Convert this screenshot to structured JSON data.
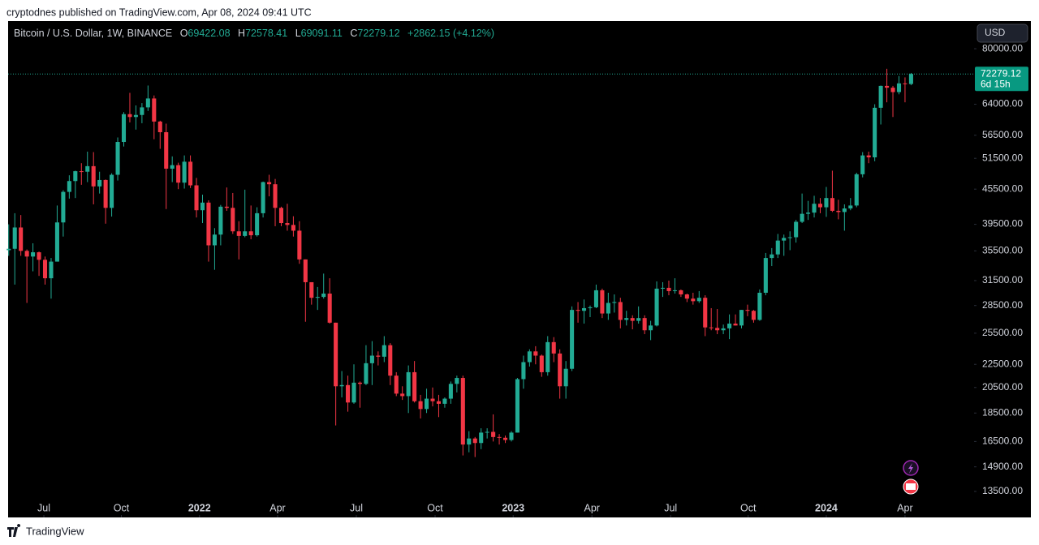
{
  "published": "cryptodnes published on TradingView.com, Apr 08, 2024 09:41 UTC",
  "brand": "TradingView",
  "chart_data": {
    "type": "candlestick",
    "title": "Bitcoin / U.S. Dollar, 1W, BINANCE",
    "ohlc_labels": [
      "O",
      "H",
      "L",
      "C"
    ],
    "change": "+2862.15 (+4.12%)",
    "countdown": "6d 15h",
    "currency": "USD",
    "up_color": "#22ab94",
    "down_color": "#f23645",
    "log_scale": true,
    "grid": false,
    "open": [
      35600,
      35800,
      39000,
      35500,
      34700,
      35300,
      34250,
      31800,
      34000,
      39800,
      45000,
      47000,
      48900,
      48800,
      49900,
      46000,
      47200,
      42200,
      48200,
      55000,
      61500,
      60800,
      61300,
      63200,
      65500,
      59700,
      57200,
      49400,
      50100,
      46700,
      50800,
      46200,
      41800,
      43100,
      36300,
      37900,
      42400,
      42200,
      38400,
      37700,
      38400,
      37800,
      41300,
      46800,
      46400,
      42200,
      39700,
      39400,
      38500,
      34300,
      31300,
      29400,
      29500,
      29900,
      26600,
      20600,
      20700,
      19300,
      20900,
      20800,
      22600,
      23300,
      23200,
      24300,
      21500,
      20000,
      19800,
      21800,
      19400,
      18800,
      19600,
      19400,
      19200,
      19600,
      20800,
      21300,
      16300,
      16700,
      16400,
      17100,
      17150,
      16800,
      16750,
      16600,
      17100,
      21200,
      22700,
      23700,
      23300,
      21800,
      24600,
      23500,
      20600,
      22100,
      28000,
      27900,
      28200,
      28300,
      30300,
      27600,
      28800,
      28900,
      26900,
      27100,
      26800,
      27100,
      25800,
      26300,
      30500,
      30600,
      30200,
      30300,
      29800,
      29300,
      29000,
      29400,
      26100,
      26050,
      25800,
      26000,
      26500,
      26300,
      28000,
      27900,
      26900,
      30000,
      34500,
      35000,
      37000,
      37400,
      37500,
      39900,
      41200,
      41400,
      42900,
      42300,
      43900,
      41700,
      41500,
      42100,
      42600,
      48300,
      52100,
      51700,
      63100,
      68900,
      68400,
      67200,
      69600,
      69422.08
    ],
    "high": [
      39500,
      41300,
      41000,
      35700,
      36600,
      35400,
      34700,
      34500,
      42600,
      45300,
      48100,
      49000,
      50500,
      52900,
      52800,
      48800,
      47300,
      48500,
      56000,
      62000,
      67000,
      63700,
      64300,
      69000,
      66300,
      59900,
      59200,
      51900,
      50600,
      52100,
      52100,
      47600,
      44500,
      43500,
      38900,
      42700,
      45800,
      44800,
      40000,
      45400,
      42600,
      42300,
      46900,
      48200,
      47400,
      42400,
      42900,
      40800,
      40000,
      34300,
      31300,
      30700,
      32400,
      31800,
      26600,
      21900,
      21500,
      22500,
      21000,
      24300,
      24700,
      23700,
      25200,
      24500,
      21800,
      20600,
      22400,
      22800,
      19900,
      20400,
      20500,
      19900,
      19700,
      21000,
      21500,
      21500,
      17200,
      16800,
      17400,
      17400,
      18400,
      17000,
      16900,
      17200,
      21300,
      23300,
      23900,
      24200,
      23400,
      25200,
      25100,
      23900,
      22800,
      28400,
      28900,
      29200,
      28500,
      31000,
      30500,
      30000,
      29800,
      29400,
      27900,
      27400,
      28400,
      27400,
      26800,
      31400,
      31300,
      31500,
      31800,
      30400,
      29900,
      30000,
      30200,
      29700,
      28200,
      28100,
      26400,
      27500,
      27500,
      28000,
      28600,
      28000,
      30400,
      35200,
      35900,
      38000,
      37900,
      38400,
      40200,
      44700,
      43400,
      44300,
      43900,
      45900,
      49000,
      43600,
      42800,
      43900,
      48600,
      52800,
      52900,
      64000,
      69000,
      73800,
      68900,
      71700,
      71300,
      72578.41
    ],
    "low": [
      34800,
      31000,
      34800,
      28800,
      32700,
      32100,
      31000,
      29300,
      34000,
      37600,
      43800,
      43900,
      46300,
      46800,
      42800,
      44700,
      39600,
      40750,
      47100,
      54000,
      59500,
      57800,
      59300,
      62300,
      55600,
      53500,
      42000,
      46800,
      45500,
      45600,
      45700,
      40600,
      39700,
      34000,
      32900,
      36300,
      41700,
      38000,
      34300,
      37500,
      37200,
      37600,
      40600,
      44200,
      39200,
      39200,
      38500,
      37600,
      33700,
      26700,
      28600,
      28000,
      29300,
      26500,
      17600,
      19700,
      18600,
      19200,
      18900,
      20700,
      20700,
      22400,
      22700,
      20700,
      19800,
      19500,
      18500,
      19300,
      18100,
      18500,
      19000,
      18200,
      18900,
      19200,
      20100,
      15600,
      15800,
      15500,
      16000,
      16700,
      16500,
      16300,
      16400,
      16500,
      17100,
      20400,
      22300,
      22500,
      21400,
      21500,
      22700,
      19600,
      19600,
      21900,
      26600,
      26500,
      27200,
      28200,
      27100,
      26900,
      27700,
      26000,
      26300,
      25900,
      26500,
      25400,
      24800,
      26200,
      29500,
      29700,
      29900,
      29500,
      28900,
      28600,
      28800,
      25200,
      25800,
      25400,
      25400,
      24900,
      26300,
      26000,
      27300,
      26600,
      26800,
      29700,
      33400,
      34500,
      34800,
      35600,
      36700,
      39700,
      40200,
      40600,
      41300,
      40700,
      41500,
      40300,
      38500,
      41800,
      42300,
      47700,
      50500,
      50900,
      59000,
      64500,
      60800,
      66600,
      64500,
      69091.11
    ],
    "close": [
      35800,
      39000,
      35500,
      34700,
      35300,
      34250,
      31800,
      34000,
      39800,
      45000,
      47000,
      48900,
      48800,
      49900,
      46000,
      47200,
      42200,
      48200,
      55000,
      61500,
      60800,
      61300,
      63200,
      65500,
      59700,
      57200,
      49400,
      50100,
      46700,
      50800,
      46200,
      41800,
      43100,
      36300,
      37900,
      42400,
      42200,
      38400,
      37700,
      38400,
      37800,
      41300,
      46800,
      46400,
      42200,
      39700,
      39400,
      38500,
      34300,
      31300,
      29400,
      29500,
      29900,
      26600,
      20600,
      20700,
      19300,
      20900,
      20800,
      22600,
      23300,
      23200,
      24300,
      21500,
      20000,
      19800,
      21800,
      19400,
      18800,
      19600,
      19400,
      19200,
      19600,
      20800,
      21300,
      16300,
      16700,
      16400,
      17100,
      17150,
      16800,
      16750,
      16600,
      17100,
      21200,
      22700,
      23700,
      23300,
      21800,
      24600,
      23500,
      20600,
      22100,
      28000,
      27900,
      28200,
      28300,
      30300,
      27600,
      28800,
      28900,
      26900,
      27100,
      26800,
      27100,
      25800,
      26300,
      30500,
      30600,
      30200,
      30300,
      29800,
      29300,
      29000,
      29400,
      26100,
      26050,
      25800,
      26000,
      26500,
      26300,
      28000,
      27900,
      26900,
      30000,
      34500,
      35000,
      37000,
      37400,
      37500,
      39900,
      41200,
      41400,
      42900,
      42300,
      43900,
      41700,
      41500,
      42100,
      42600,
      48300,
      52100,
      51700,
      63100,
      68900,
      68400,
      67200,
      69600,
      69400,
      72279.12
    ],
    "xlim": [
      -0.1,
      159.4
    ],
    "xticks": [
      {
        "value": 5.8,
        "label": "Jul"
      },
      {
        "value": 18.6,
        "label": "Oct"
      },
      {
        "value": 31.5,
        "label": "2022"
      },
      {
        "value": 44.4,
        "label": "Apr"
      },
      {
        "value": 57.4,
        "label": "Jul"
      },
      {
        "value": 70.4,
        "label": "Oct"
      },
      {
        "value": 83.3,
        "label": "2023"
      },
      {
        "value": 96.3,
        "label": "Apr"
      },
      {
        "value": 109.3,
        "label": "Jul"
      },
      {
        "value": 122.1,
        "label": "Oct"
      },
      {
        "value": 135,
        "label": "2024"
      },
      {
        "value": 148,
        "label": "Apr"
      }
    ],
    "ylim": [
      12160,
      89400
    ],
    "yticks": [
      {
        "value": 80000,
        "label": "80000.00"
      },
      {
        "value": 64000,
        "label": "64000.00"
      },
      {
        "value": 56500,
        "label": "56500.00"
      },
      {
        "value": 51500,
        "label": "51500.00"
      },
      {
        "value": 45500,
        "label": "45500.00"
      },
      {
        "value": 39500,
        "label": "39500.00"
      },
      {
        "value": 35500,
        "label": "35500.00"
      },
      {
        "value": 31500,
        "label": "31500.00"
      },
      {
        "value": 28500,
        "label": "28500.00"
      },
      {
        "value": 25500,
        "label": "25500.00"
      },
      {
        "value": 22500,
        "label": "22500.00"
      },
      {
        "value": 20500,
        "label": "20500.00"
      },
      {
        "value": 18500,
        "label": "18500.00"
      },
      {
        "value": 16500,
        "label": "16500.00"
      },
      {
        "value": 14900,
        "label": "14900.00"
      },
      {
        "value": 13500,
        "label": "13500.00"
      }
    ]
  }
}
